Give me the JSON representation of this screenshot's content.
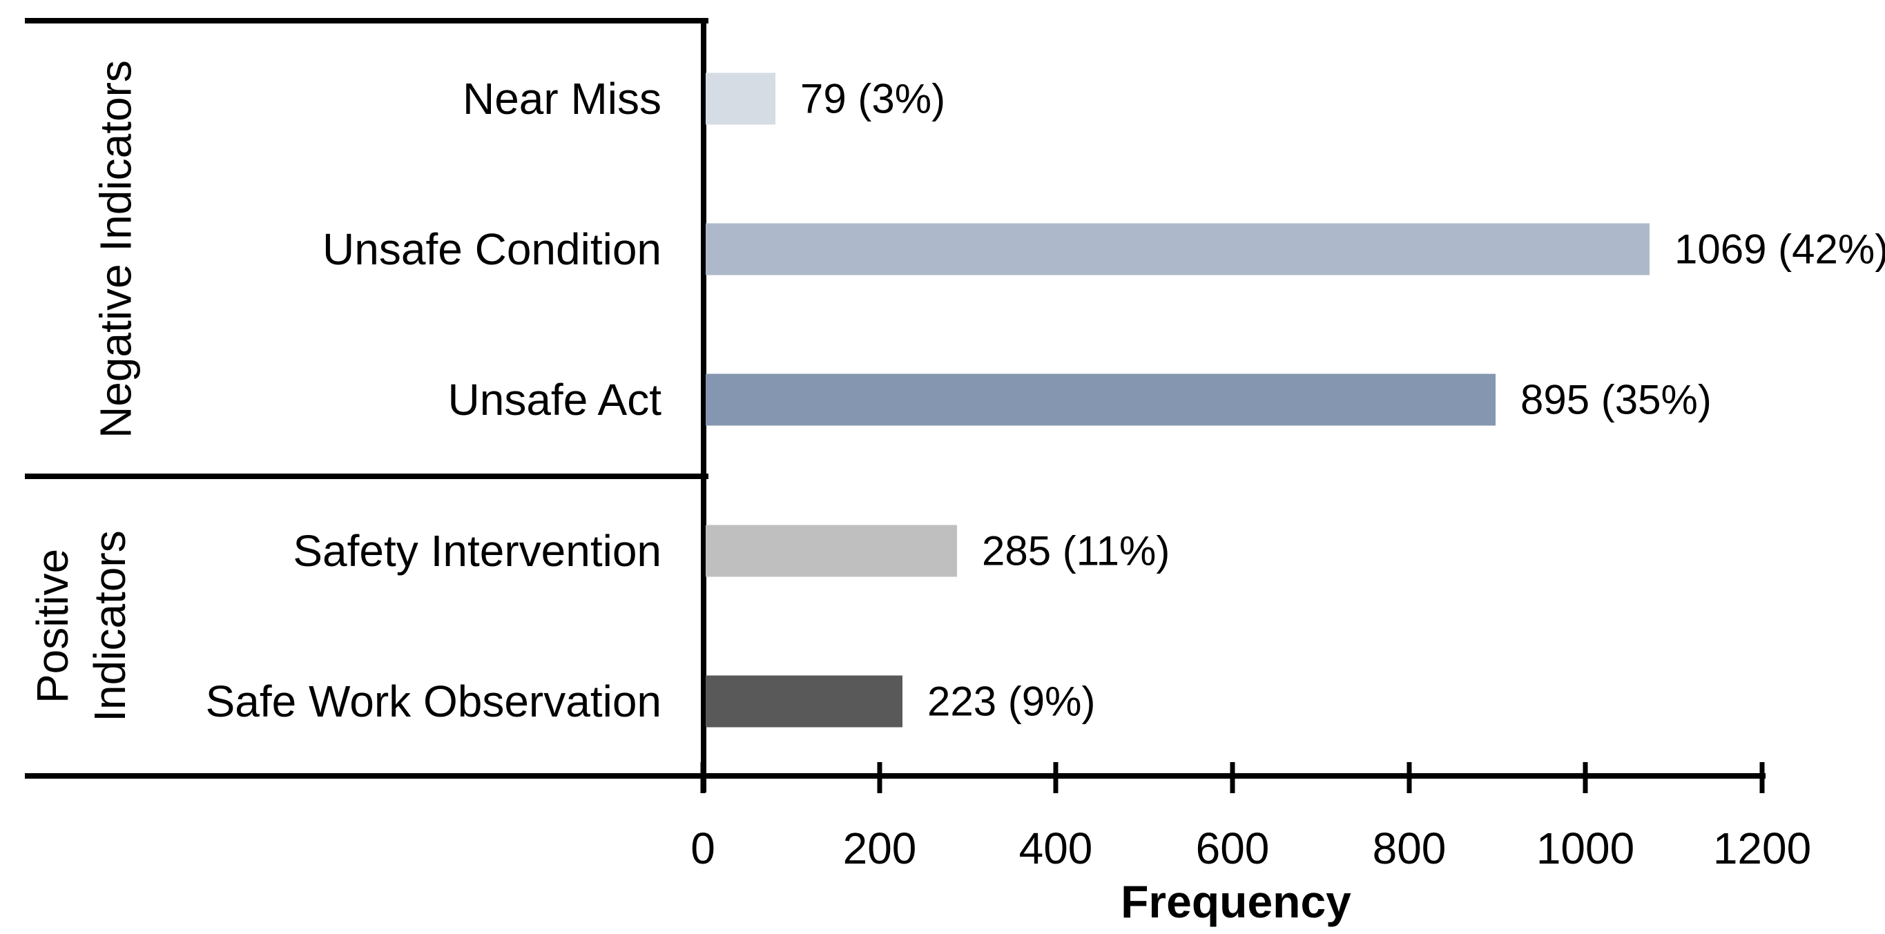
{
  "chart_data": {
    "type": "bar",
    "orientation": "horizontal",
    "title": "",
    "xlabel": "Frequency",
    "ylabel": "",
    "xlim": [
      0,
      1200
    ],
    "grid": false,
    "legend": false,
    "x_ticks": [
      0,
      200,
      400,
      600,
      800,
      1000,
      1200
    ],
    "x_tick_labels": [
      "0",
      "200",
      "400",
      "600",
      "800",
      "1000",
      "1200"
    ],
    "groups": [
      {
        "label": "Negative Indicators",
        "label_lines": [
          "Negative Indicators"
        ],
        "categories": [
          "Near Miss",
          "Unsafe Condition",
          "Unsafe Act"
        ]
      },
      {
        "label": "Positive Indicators",
        "label_lines": [
          "Positive",
          "Indicators"
        ],
        "categories": [
          "Safety Intervention",
          "Safe Work Observation"
        ]
      }
    ],
    "rows": [
      {
        "category": "Near Miss",
        "value": 79,
        "percent": "3%",
        "label": "79 (3%)",
        "color": "#D6DCE4",
        "group": "Negative Indicators"
      },
      {
        "category": "Unsafe Condition",
        "value": 1069,
        "percent": "42%",
        "label": "1069 (42%)",
        "color": "#ADB9CA",
        "group": "Negative Indicators"
      },
      {
        "category": "Unsafe Act",
        "value": 895,
        "percent": "35%",
        "label": "895 (35%)",
        "color": "#8496B0",
        "group": "Negative Indicators"
      },
      {
        "category": "Safety Intervention",
        "value": 285,
        "percent": "11%",
        "label": "285 (11%)",
        "color": "#BFBFBF",
        "group": "Positive Indicators"
      },
      {
        "category": "Safe Work Observation",
        "value": 223,
        "percent": "9%",
        "label": "223 (9%)",
        "color": "#595959",
        "group": "Positive Indicators"
      }
    ],
    "colors": {
      "axis": "#000000",
      "text": "#000000",
      "background": "#FFFFFF"
    }
  }
}
